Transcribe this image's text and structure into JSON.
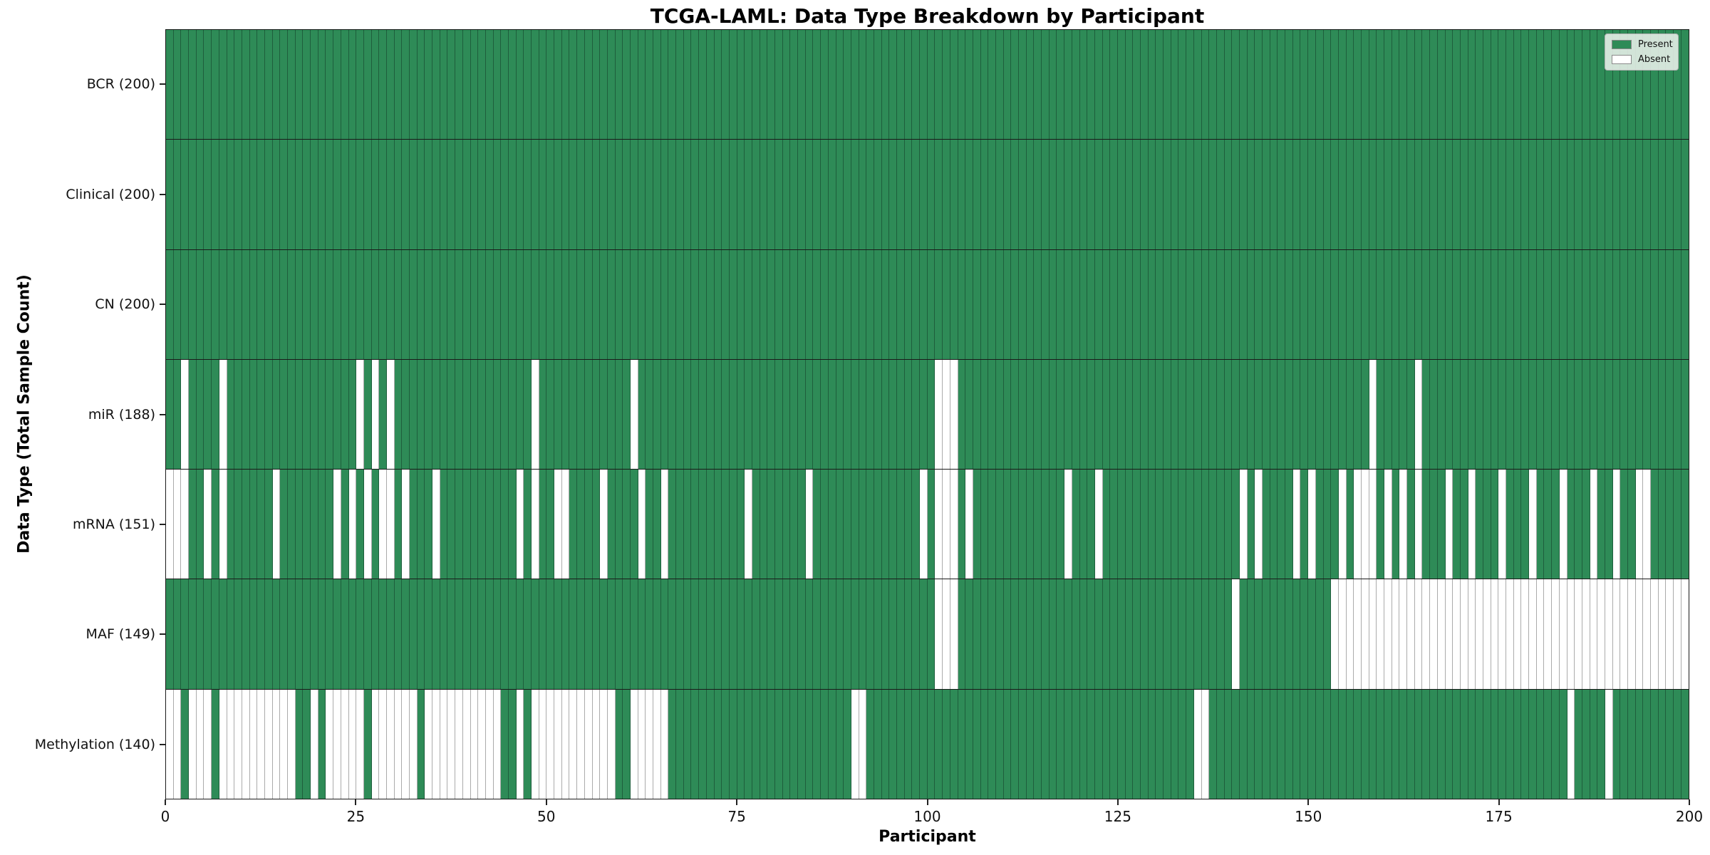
{
  "figure": {
    "title": "TCGA-LAML: Data Type Breakdown by Participant",
    "xlabel": "Participant",
    "ylabel": "Data Type (Total Sample Count)"
  },
  "legend": {
    "items": [
      {
        "label": "Present",
        "color": "#2e8b57"
      },
      {
        "label": "Absent",
        "color": "#ffffff"
      }
    ]
  },
  "chart_data": {
    "type": "heatmap",
    "title": "TCGA-LAML: Data Type Breakdown by Participant",
    "xlabel": "Participant",
    "ylabel": "Data Type (Total Sample Count)",
    "x_axis": {
      "range": [
        0,
        200
      ],
      "ticks": [
        0,
        25,
        50,
        75,
        100,
        125,
        150,
        175,
        200
      ]
    },
    "n_participants": 200,
    "grid": true,
    "legend_position": "upper right",
    "colors": {
      "present": "#2e8b57",
      "absent": "#ffffff",
      "row_separator": "#1a1a1a",
      "cell_edge_on_present": "rgba(18,58,38,0.55)",
      "cell_edge_on_absent": "#ababab"
    },
    "value_encoding": {
      "present": "filled green cell",
      "absent": "white cell"
    },
    "rows": [
      {
        "label": "BCR (200)",
        "name": "BCR",
        "total_samples": 200,
        "absent_participants": []
      },
      {
        "label": "Clinical (200)",
        "name": "Clinical",
        "total_samples": 200,
        "absent_participants": []
      },
      {
        "label": "CN (200)",
        "name": "CN",
        "total_samples": 200,
        "absent_participants": []
      },
      {
        "label": "miR (188)",
        "name": "miR",
        "total_samples": 188,
        "absent_participants": [
          2,
          7,
          25,
          27,
          29,
          48,
          61,
          101,
          102,
          103,
          158,
          164
        ]
      },
      {
        "label": "mRNA (151)",
        "name": "mRNA",
        "total_samples": 151,
        "absent_participants": [
          0,
          1,
          2,
          5,
          7,
          14,
          22,
          24,
          26,
          28,
          29,
          31,
          35,
          46,
          48,
          51,
          52,
          57,
          62,
          65,
          76,
          84,
          99,
          101,
          102,
          103,
          105,
          118,
          122,
          141,
          143,
          148,
          150,
          154,
          156,
          157,
          158,
          160,
          162,
          164,
          168,
          171,
          175,
          179,
          183,
          187,
          190,
          193,
          194
        ]
      },
      {
        "label": "MAF (149)",
        "name": "MAF",
        "total_samples": 149,
        "absent_participants": [
          101,
          102,
          103,
          140,
          153,
          154,
          155,
          156,
          157,
          158,
          159,
          160,
          161,
          162,
          163,
          164,
          165,
          166,
          167,
          168,
          169,
          170,
          171,
          172,
          173,
          174,
          175,
          176,
          177,
          178,
          179,
          180,
          181,
          182,
          183,
          184,
          185,
          186,
          187,
          188,
          189,
          190,
          191,
          192,
          193,
          194,
          195,
          196,
          197,
          198,
          199
        ]
      },
      {
        "label": "Methylation (140)",
        "name": "Methylation",
        "total_samples": 140,
        "absent_participants": [
          0,
          1,
          3,
          4,
          5,
          7,
          8,
          9,
          10,
          11,
          12,
          13,
          14,
          15,
          16,
          19,
          21,
          22,
          23,
          24,
          25,
          27,
          28,
          29,
          30,
          31,
          32,
          34,
          35,
          36,
          37,
          38,
          39,
          40,
          41,
          42,
          43,
          46,
          48,
          49,
          50,
          51,
          52,
          53,
          54,
          55,
          56,
          57,
          58,
          61,
          62,
          63,
          64,
          65,
          90,
          91,
          135,
          136,
          184,
          189
        ]
      }
    ]
  }
}
